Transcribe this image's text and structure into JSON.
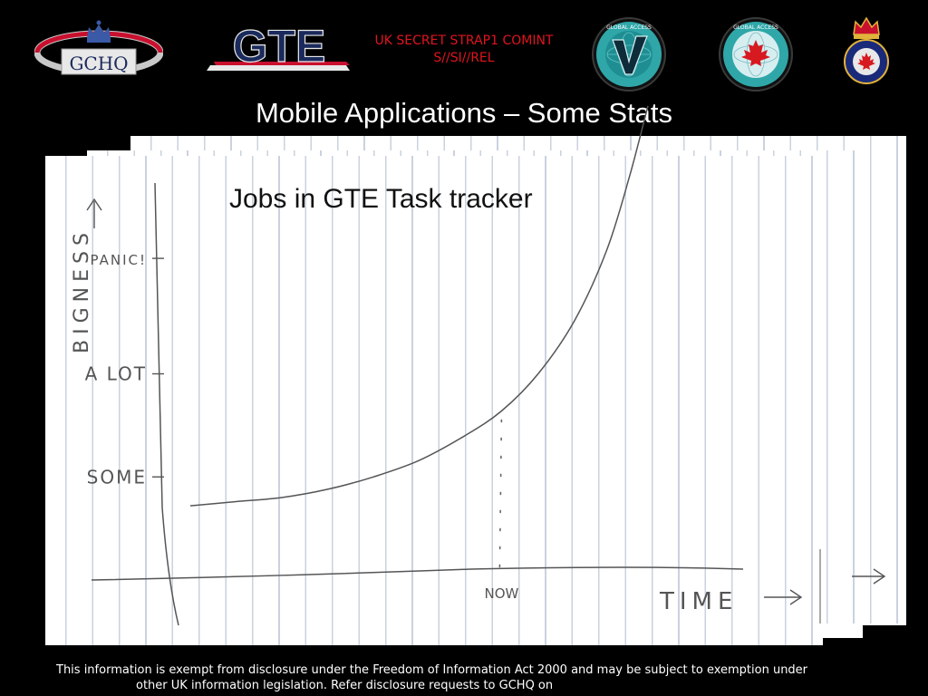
{
  "header": {
    "gchq_logo_text": "GCHQ",
    "gte_logo_text": "GTE",
    "classification_line1": "UK SECRET STRAP1 COMINT",
    "classification_line2": "S//SI//REL",
    "badge_left_text": "GLOBAL ACCESS",
    "badge_right_text": "GLOBAL ACCESS"
  },
  "slide": {
    "title": "Mobile Applications – Some Stats"
  },
  "colors": {
    "background": "#000000",
    "classification": "#e0141e",
    "gte_navy": "#1a2a5c",
    "gte_red": "#c8102e",
    "paper_line": "#c9d2df",
    "pencil": "#555555",
    "badge_teal": "#2fa7a9"
  },
  "chart_data": {
    "type": "line",
    "title": "Jobs in GTE Task tracker",
    "xlabel": "TIME",
    "ylabel": "BIGNESS",
    "x_tick_labels": [
      {
        "label": "NOW",
        "x": 0.68
      }
    ],
    "y_tick_labels": [
      {
        "label": "SOME",
        "y": 0.25
      },
      {
        "label": "A LOT",
        "y": 0.5
      },
      {
        "label": "PANIC!",
        "y": 0.78
      }
    ],
    "xlim": [
      0,
      1
    ],
    "ylim": [
      0,
      1.18
    ],
    "series": [
      {
        "values_x": [
          0.0,
          0.1,
          0.2,
          0.3,
          0.4,
          0.5,
          0.6,
          0.68,
          0.76,
          0.84,
          0.91,
          0.96,
          1.0
        ],
        "values_y": [
          0.18,
          0.19,
          0.2,
          0.22,
          0.25,
          0.29,
          0.35,
          0.41,
          0.5,
          0.63,
          0.8,
          0.98,
          1.15
        ]
      }
    ],
    "now_marker_x": 0.68,
    "grid": false
  },
  "footer": {
    "line1": "This information is exempt from disclosure under the Freedom of Information Act 2000 and may be subject to exemption under",
    "line2": "other UK information legislation. Refer disclosure requests to GCHQ on"
  }
}
